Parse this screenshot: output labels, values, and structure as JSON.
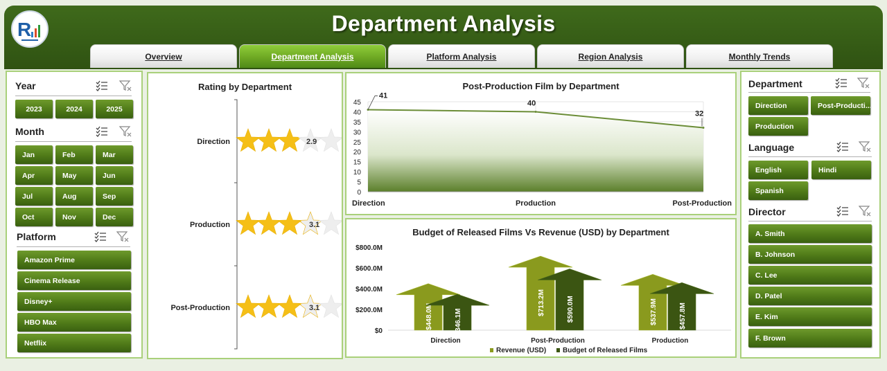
{
  "header": {
    "title": "Department Analysis",
    "tabs": [
      {
        "label": "Overview",
        "active": false
      },
      {
        "label": "Department Analysis",
        "active": true
      },
      {
        "label": "Platform Analysis",
        "active": false
      },
      {
        "label": "Region Analysis",
        "active": false
      },
      {
        "label": "Monthly Trends",
        "active": false
      }
    ]
  },
  "left_slicers": {
    "year": {
      "title": "Year",
      "items": [
        "2023",
        "2024",
        "2025"
      ]
    },
    "month": {
      "title": "Month",
      "items": [
        "Jan",
        "Feb",
        "Mar",
        "Apr",
        "May",
        "Jun",
        "Jul",
        "Aug",
        "Sep",
        "Oct",
        "Nov",
        "Dec"
      ]
    },
    "platform": {
      "title": "Platform",
      "items": [
        "Amazon Prime",
        "Cinema Release",
        "Disney+",
        "HBO Max",
        "Netflix"
      ]
    }
  },
  "right_slicers": {
    "department": {
      "title": "Department",
      "items": [
        "Direction",
        "Post-Producti...",
        "Production"
      ]
    },
    "language": {
      "title": "Language",
      "items": [
        "English",
        "Hindi",
        "Spanish"
      ]
    },
    "director": {
      "title": "Director",
      "items": [
        "A. Smith",
        "B. Johnson",
        "C. Lee",
        "D. Patel",
        "E. Kim",
        "F. Brown"
      ]
    }
  },
  "colors": {
    "header": "#3f6a1b",
    "button": "#4f7a18",
    "active_tab": "#7bbb2c",
    "star": "#f5bf17",
    "revenue": "#8a9a1e",
    "budget": "#3b5512",
    "panel_border": "#a9d07a"
  },
  "chart_data": [
    {
      "type": "bar",
      "title": "Rating by Department",
      "subtype": "star-rating",
      "categories": [
        "Direction",
        "Production",
        "Post-Production"
      ],
      "values": [
        2.9,
        3.1,
        3.1
      ],
      "value_labels": [
        "2.9",
        "3.1",
        "3.1"
      ],
      "max_stars": 5
    },
    {
      "type": "area",
      "title": "Post-Production Film by Department",
      "categories": [
        "Direction",
        "Production",
        "Post-Production"
      ],
      "values": [
        41,
        40,
        32
      ],
      "data_labels": [
        "41",
        "40",
        "32"
      ],
      "ylim": [
        0,
        45
      ],
      "yticks": [
        "0",
        "5",
        "10",
        "15",
        "20",
        "25",
        "30",
        "35",
        "40",
        "45"
      ],
      "grid": true
    },
    {
      "type": "bar",
      "title": "Budget of Released Films Vs Revenue (USD) by Department",
      "categories": [
        "Direction",
        "Post-Production",
        "Production"
      ],
      "series": [
        {
          "name": "Revenue (USD)",
          "values": [
            448.0,
            713.2,
            537.9
          ],
          "labels": [
            "$448.0M",
            "$713.2M",
            "$537.9M"
          ]
        },
        {
          "name": "Budget of Released Films",
          "values": [
            346.1,
            590.0,
            457.8
          ],
          "labels": [
            "$346.1M",
            "$590.0M",
            "$457.8M"
          ]
        }
      ],
      "ylim": [
        0,
        800
      ],
      "yticks": [
        "$0",
        "$200.0M",
        "$400.0M",
        "$600.0M",
        "$800.0M"
      ],
      "legend": "bottom"
    }
  ]
}
